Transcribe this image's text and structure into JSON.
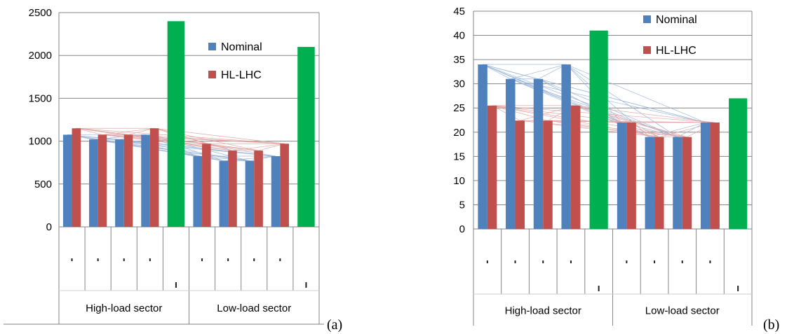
{
  "colors": {
    "nominal": "#4F81BD",
    "hllhc": "#C0504D",
    "limit": "#00B050",
    "grid": "#868686",
    "link_nominal": "#9DB7DC",
    "link_hllhc": "#E4A9A7"
  },
  "chart_data": [
    {
      "type": "bar",
      "panel_label": "(a)",
      "ylim": [
        0,
        2500
      ],
      "yticks": [
        "0",
        "500",
        "1000",
        "1500",
        "2000",
        "2500"
      ],
      "groups": [
        "High-load sector",
        "Low-load sector"
      ],
      "legend": [
        "Nominal",
        "HL-LHC"
      ],
      "series": [
        {
          "name": "Nominal",
          "values": [
            1075,
            1020,
            1020,
            1075,
            null,
            825,
            770,
            770,
            825,
            null
          ]
        },
        {
          "name": "HL-LHC",
          "values": [
            1150,
            1075,
            1075,
            1150,
            null,
            970,
            890,
            890,
            970,
            null
          ]
        },
        {
          "values": [
            null,
            null,
            null,
            null,
            2400,
            null,
            null,
            null,
            null,
            2100
          ]
        }
      ]
    },
    {
      "type": "bar",
      "panel_label": "(b)",
      "ylim": [
        0,
        45
      ],
      "yticks": [
        "0",
        "5",
        "10",
        "15",
        "20",
        "25",
        "30",
        "35",
        "40",
        "45"
      ],
      "groups": [
        "High-load sector",
        "Low-load sector"
      ],
      "legend": [
        "Nominal",
        "HL-LHC"
      ],
      "series": [
        {
          "name": "Nominal",
          "values": [
            34,
            31,
            31,
            34,
            null,
            22,
            19,
            19,
            22,
            null
          ]
        },
        {
          "name": "HL-LHC",
          "values": [
            25.5,
            22.4,
            22.4,
            25.5,
            null,
            22,
            19,
            19,
            22,
            null
          ]
        },
        {
          "values": [
            null,
            null,
            null,
            null,
            41,
            null,
            null,
            null,
            null,
            27
          ]
        }
      ]
    }
  ]
}
